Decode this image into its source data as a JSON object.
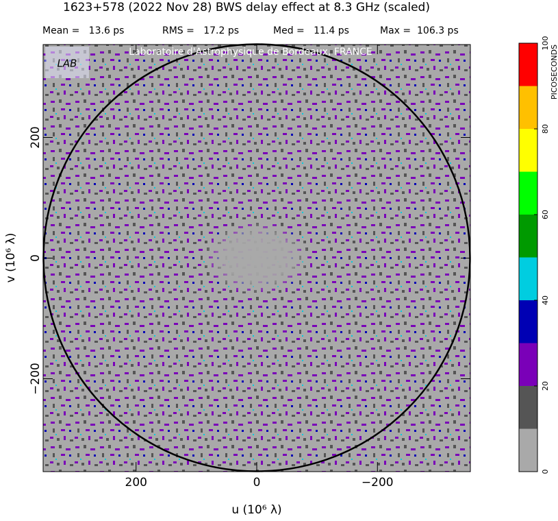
{
  "chart_data": {
    "type": "heatmap",
    "title": "1623+578  (2022 Nov 28)   BWS delay effect at  8.3 GHz (scaled)",
    "stats": [
      "Mean =   13.6 ps",
      "RMS =   17.2 ps",
      "Med =   11.4 ps",
      "Max =  106.3 ps"
    ],
    "watermark": "Laboratoire d'Astrophysique de Bordeaux, FRANCE",
    "logo": "LAB",
    "xlabel": "u  (10⁶ λ)",
    "ylabel": "v  (10⁶ λ)",
    "xlim": [
      354,
      -354
    ],
    "ylim": [
      -354,
      354
    ],
    "xticks": [
      {
        "value": 200,
        "label": "200"
      },
      0,
      {
        "value": -200,
        "label": "−200"
      }
    ],
    "yticks": [
      {
        "value": -200,
        "label": "−200"
      },
      0,
      200
    ],
    "colorbar": {
      "label": "PICOSECONDS",
      "bins": [
        0,
        10,
        20,
        30,
        40,
        50,
        60,
        70,
        80,
        90,
        100
      ],
      "colors": [
        "#a9a9a9",
        "#555555",
        "#7a00b8",
        "#0000b4",
        "#00cde0",
        "#009a00",
        "#00ff00",
        "#ffff00",
        "#ffc000",
        "#ff0000"
      ],
      "ticks": [
        0,
        20,
        40,
        60,
        80,
        100
      ]
    }
  }
}
